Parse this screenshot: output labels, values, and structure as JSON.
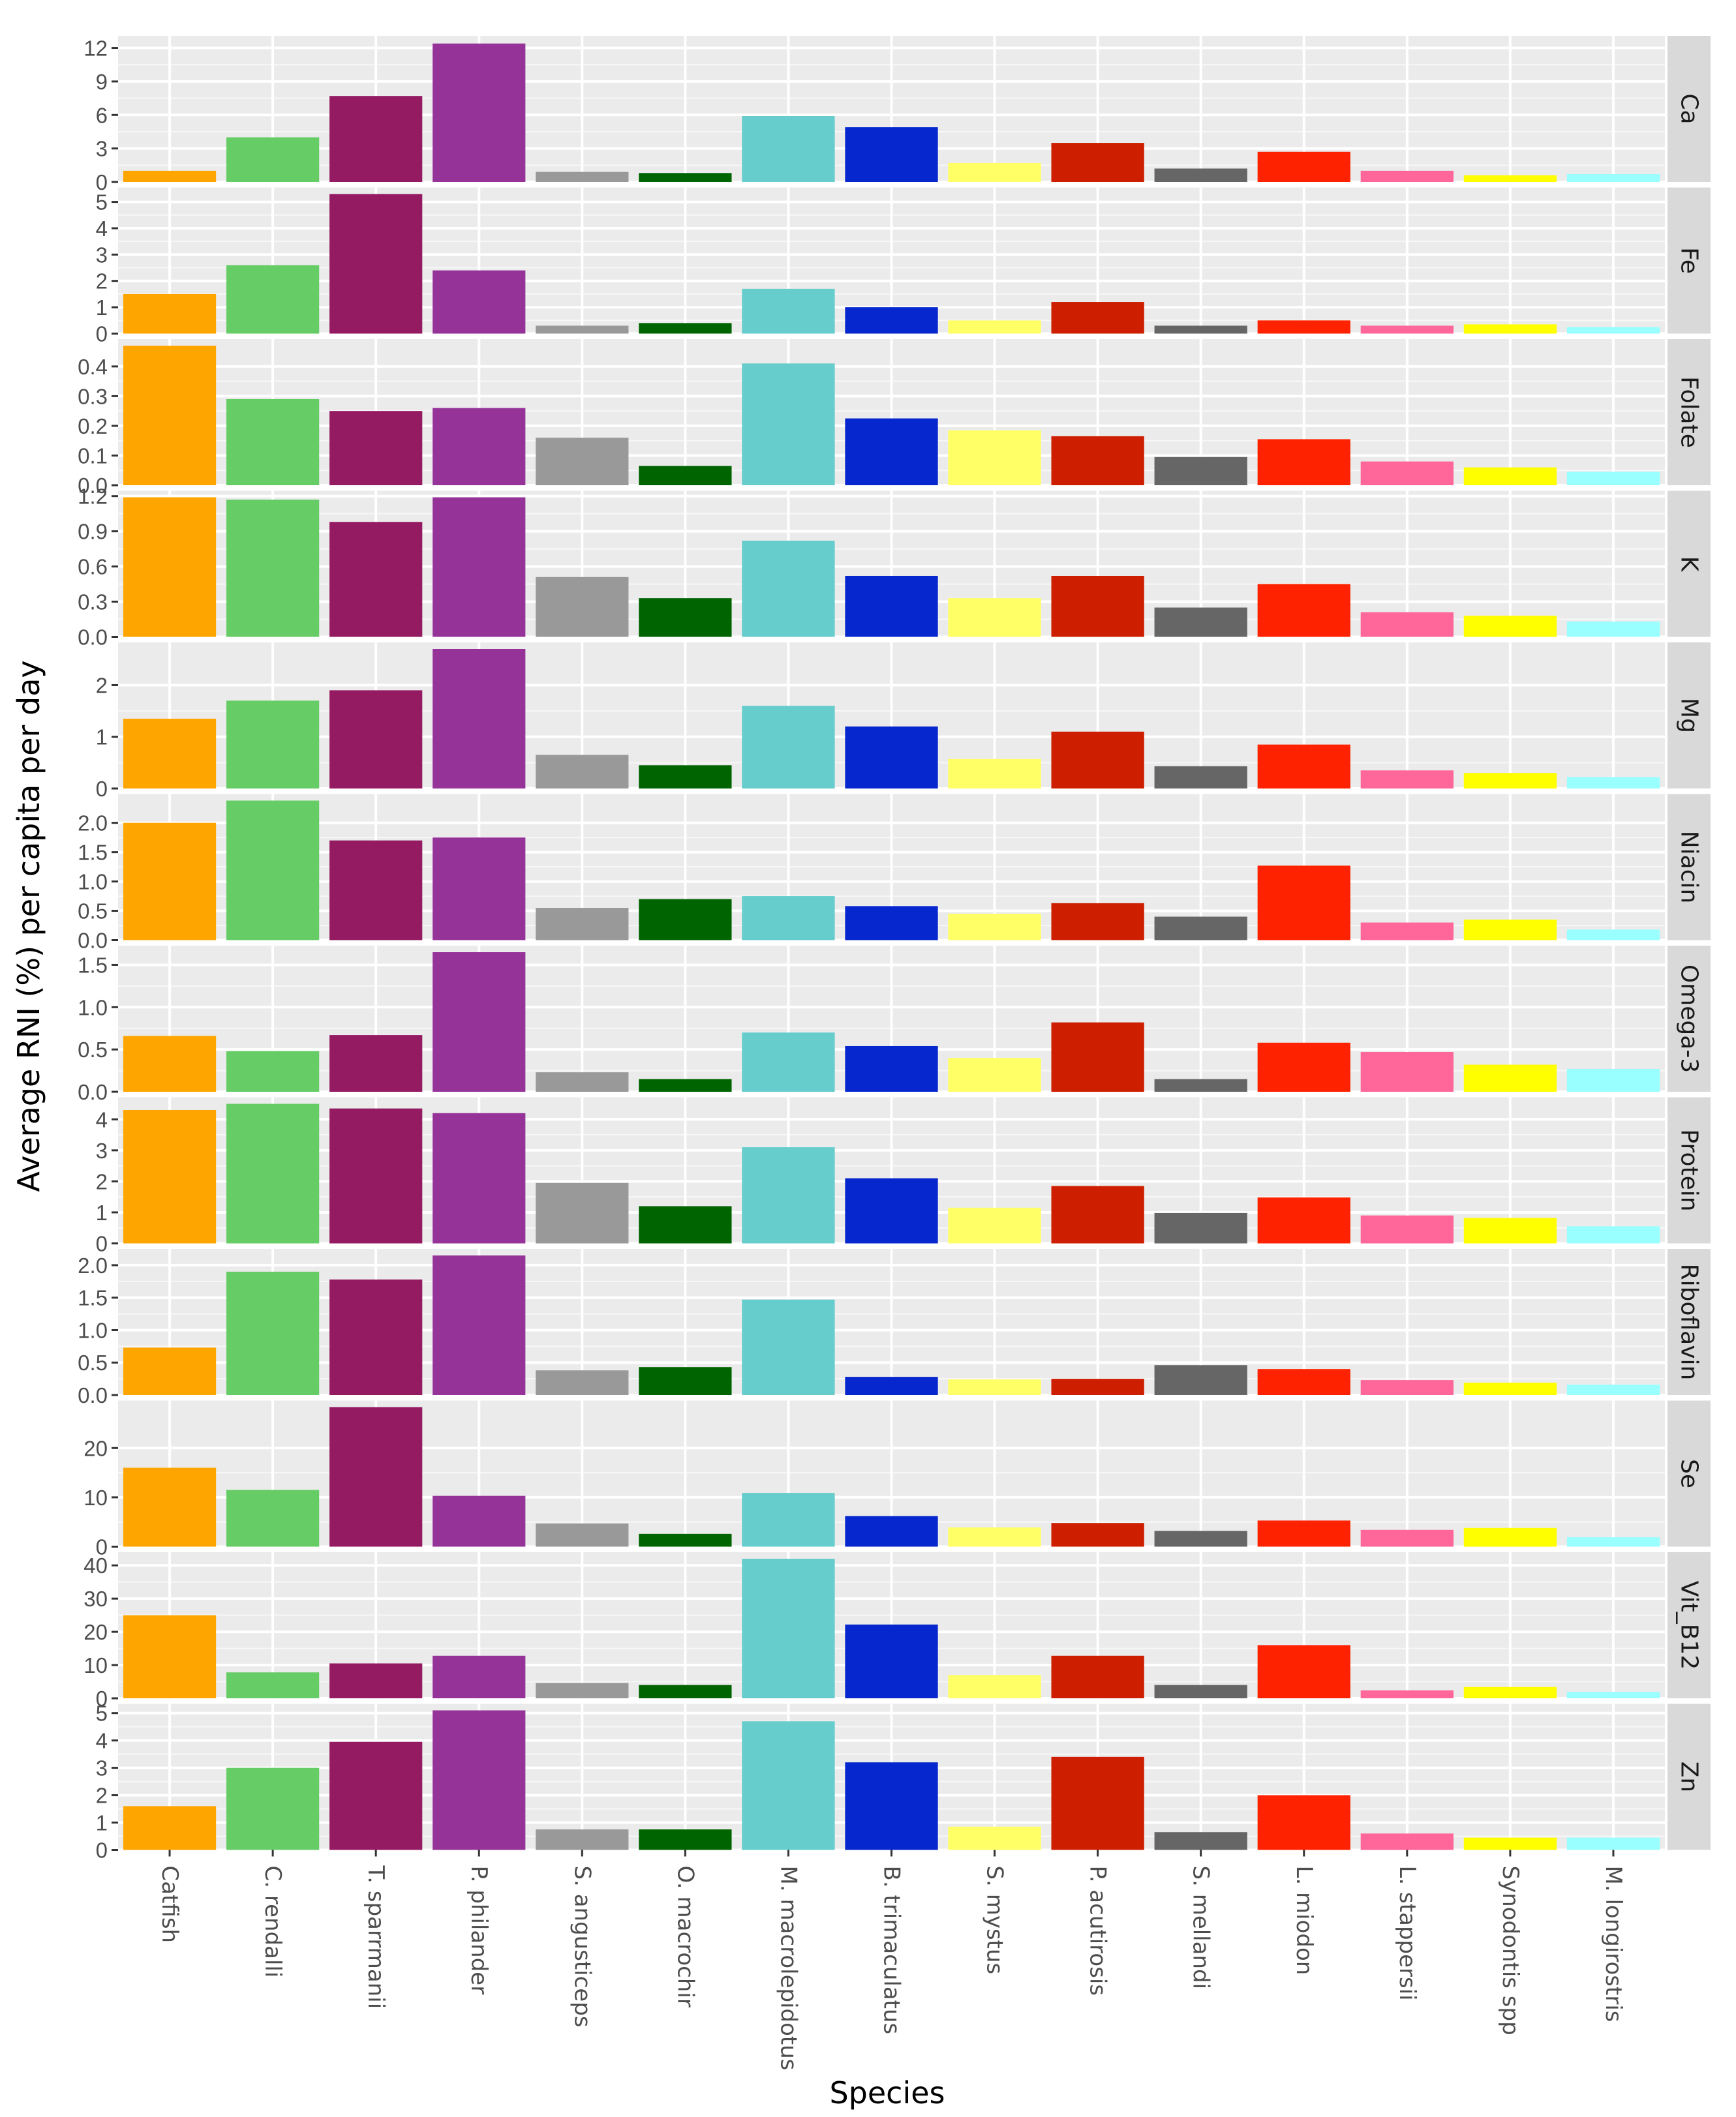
{
  "chart_data": {
    "type": "bar",
    "layout": "faceted",
    "xlabel": "Species",
    "ylabel": "Average RNI (%) per capita per day",
    "categories": [
      "Catfish",
      "C. rendalli",
      "T. sparrmanii",
      "P. philander",
      "S. angusticeps",
      "O. macrochir",
      "M. macrolepidotus",
      "B. trimaculatus",
      "S. mystus",
      "P. acutirosis",
      "S. mellandi",
      "L. miodon",
      "L. stappersii",
      "Synodontis spp",
      "M. longirostris"
    ],
    "colors": [
      "#FFA500",
      "#66CC66",
      "#941A62",
      "#953399",
      "#999999",
      "#006400",
      "#66CCCC",
      "#0527CD",
      "#FFFF66",
      "#CD1F00",
      "#666666",
      "#FF2200",
      "#FF6699",
      "#FFFF00",
      "#99FFFF"
    ],
    "facets": [
      {
        "name": "Ca",
        "ylim": [
          0,
          12.5
        ],
        "ticks": [
          0,
          3,
          6,
          9,
          12
        ],
        "tick_labels": [
          "0",
          "3",
          "6",
          "9",
          "12"
        ],
        "values": [
          1.0,
          4.0,
          7.7,
          12.4,
          0.9,
          0.8,
          5.9,
          4.9,
          1.7,
          3.5,
          1.2,
          2.7,
          1.0,
          0.6,
          0.7
        ]
      },
      {
        "name": "Fe",
        "ylim": [
          0,
          5.3
        ],
        "ticks": [
          0,
          1,
          2,
          3,
          4,
          5
        ],
        "tick_labels": [
          "0",
          "1",
          "2",
          "3",
          "4",
          "5"
        ],
        "values": [
          1.5,
          2.6,
          5.3,
          2.4,
          0.3,
          0.4,
          1.7,
          1.0,
          0.5,
          1.2,
          0.3,
          0.5,
          0.3,
          0.35,
          0.25
        ]
      },
      {
        "name": "Folate",
        "ylim": [
          0,
          0.47
        ],
        "ticks": [
          0,
          0.1,
          0.2,
          0.3,
          0.4
        ],
        "tick_labels": [
          "0.0",
          "0.1",
          "0.2",
          "0.3",
          "0.4"
        ],
        "values": [
          0.47,
          0.29,
          0.25,
          0.26,
          0.16,
          0.065,
          0.41,
          0.225,
          0.185,
          0.165,
          0.095,
          0.155,
          0.08,
          0.06,
          0.045
        ]
      },
      {
        "name": "K",
        "ylim": [
          0,
          1.19
        ],
        "ticks": [
          0,
          0.3,
          0.6,
          0.9,
          1.2
        ],
        "tick_labels": [
          "0.0",
          "0.3",
          "0.6",
          "0.9",
          "1.2"
        ],
        "values": [
          1.19,
          1.17,
          0.98,
          1.19,
          0.51,
          0.33,
          0.82,
          0.52,
          0.33,
          0.52,
          0.25,
          0.45,
          0.21,
          0.18,
          0.13
        ]
      },
      {
        "name": "Mg",
        "ylim": [
          0,
          2.7
        ],
        "ticks": [
          0,
          1,
          2
        ],
        "tick_labels": [
          "0",
          "1",
          "2"
        ],
        "values": [
          1.35,
          1.7,
          1.9,
          2.75,
          0.65,
          0.45,
          1.6,
          1.2,
          0.57,
          1.1,
          0.43,
          0.85,
          0.35,
          0.3,
          0.22
        ]
      },
      {
        "name": "Niacin",
        "ylim": [
          0,
          2.38
        ],
        "ticks": [
          0,
          0.5,
          1,
          1.5,
          2
        ],
        "tick_labels": [
          "0.0",
          "0.5",
          "1.0",
          "1.5",
          "2.0"
        ],
        "values": [
          2.0,
          2.38,
          1.7,
          1.75,
          0.55,
          0.7,
          0.75,
          0.58,
          0.45,
          0.63,
          0.4,
          1.27,
          0.3,
          0.35,
          0.18
        ]
      },
      {
        "name": "Omega-3",
        "ylim": [
          0,
          1.65
        ],
        "ticks": [
          0,
          0.5,
          1,
          1.5
        ],
        "tick_labels": [
          "0.0",
          "0.5",
          "1.0",
          "1.5"
        ],
        "values": [
          0.66,
          0.48,
          0.67,
          1.65,
          0.23,
          0.15,
          0.7,
          0.54,
          0.4,
          0.82,
          0.15,
          0.58,
          0.47,
          0.32,
          0.27
        ]
      },
      {
        "name": "Protein",
        "ylim": [
          0,
          4.5
        ],
        "ticks": [
          0,
          1,
          2,
          3,
          4
        ],
        "tick_labels": [
          "0",
          "1",
          "2",
          "3",
          "4"
        ],
        "values": [
          4.3,
          4.5,
          4.35,
          4.2,
          1.95,
          1.2,
          3.1,
          2.1,
          1.15,
          1.85,
          0.98,
          1.48,
          0.9,
          0.82,
          0.55
        ]
      },
      {
        "name": "Riboflavin",
        "ylim": [
          0,
          2.15
        ],
        "ticks": [
          0,
          0.5,
          1,
          1.5,
          2
        ],
        "tick_labels": [
          "0.0",
          "0.5",
          "1.0",
          "1.5",
          "2.0"
        ],
        "values": [
          0.73,
          1.9,
          1.78,
          2.15,
          0.38,
          0.43,
          1.47,
          0.28,
          0.24,
          0.25,
          0.46,
          0.4,
          0.23,
          0.19,
          0.16
        ]
      },
      {
        "name": "Se",
        "ylim": [
          0,
          28.3
        ],
        "ticks": [
          0,
          10,
          20
        ],
        "tick_labels": [
          "0",
          "10",
          "20"
        ],
        "values": [
          16.0,
          11.5,
          28.3,
          10.3,
          4.7,
          2.6,
          10.9,
          6.2,
          3.9,
          4.8,
          3.2,
          5.3,
          3.4,
          3.8,
          1.9
        ]
      },
      {
        "name": "Vit_B12",
        "ylim": [
          0,
          42
        ],
        "ticks": [
          0,
          10,
          20,
          30,
          40
        ],
        "tick_labels": [
          "0",
          "10",
          "20",
          "30",
          "40"
        ],
        "values": [
          25.0,
          7.8,
          10.5,
          12.8,
          4.6,
          4.0,
          42.0,
          22.2,
          7.0,
          12.8,
          4.0,
          16.0,
          2.4,
          3.4,
          1.9
        ]
      },
      {
        "name": "Zn",
        "ylim": [
          0,
          5.1
        ],
        "ticks": [
          0,
          1,
          2,
          3,
          4,
          5
        ],
        "tick_labels": [
          "0",
          "1",
          "2",
          "3",
          "4",
          "5"
        ],
        "values": [
          1.6,
          3.0,
          3.95,
          5.1,
          0.75,
          0.75,
          4.7,
          3.2,
          0.85,
          3.4,
          0.65,
          2.0,
          0.6,
          0.45,
          0.45
        ]
      }
    ]
  }
}
